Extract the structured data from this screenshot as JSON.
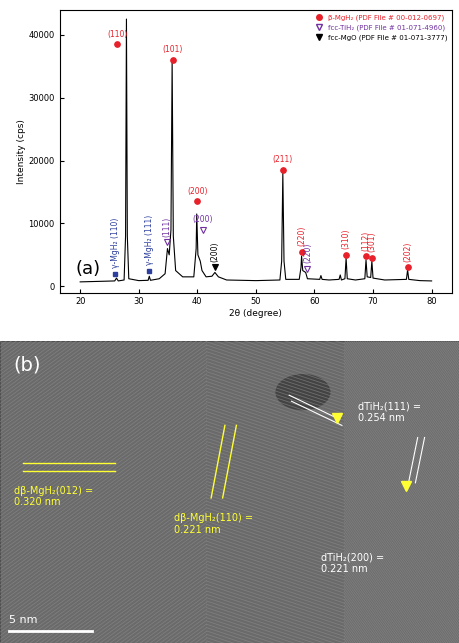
{
  "chart_data": {
    "type": "line",
    "title": "(a)",
    "xlabel": "2θ (degree)",
    "ylabel": "Intensity (cps)",
    "color": "#000000",
    "x": [
      20,
      22,
      24,
      25.9,
      26.2,
      26.5,
      27.5,
      27.75,
      27.9,
      28.05,
      28.3,
      30,
      31.6,
      31.8,
      32.0,
      33.5,
      34.5,
      34.9,
      35.2,
      35.5,
      35.7,
      35.9,
      36.3,
      37.5,
      39.4,
      39.8,
      39.9,
      40.1,
      40.5,
      40.8,
      41.5,
      42.5,
      43.0,
      43.6,
      45,
      50,
      54.1,
      54.4,
      54.6,
      54.8,
      55.1,
      57.4,
      57.7,
      57.8,
      58.0,
      58.5,
      58.8,
      60.9,
      61.1,
      61.3,
      62.5,
      64.2,
      64.4,
      64.6,
      65.2,
      65.4,
      65.6,
      67,
      68.6,
      68.8,
      69.0,
      69.6,
      69.8,
      70.0,
      72,
      75.7,
      75.9,
      76.1,
      78,
      80
    ],
    "values": [
      700,
      750,
      800,
      850,
      1300,
      850,
      1000,
      8000,
      42500,
      8000,
      1200,
      900,
      950,
      1600,
      950,
      1200,
      2000,
      6000,
      5000,
      9000,
      36000,
      8000,
      2500,
      1500,
      1500,
      6000,
      11500,
      5000,
      4000,
      2500,
      1500,
      1600,
      2200,
      1500,
      1000,
      900,
      1000,
      4000,
      18000,
      4000,
      1100,
      1100,
      3000,
      4800,
      2500,
      2200,
      1200,
      1100,
      1700,
      1100,
      1000,
      1100,
      1800,
      1000,
      1200,
      4500,
      1200,
      1000,
      1200,
      4200,
      1500,
      1400,
      4000,
      1300,
      1000,
      1100,
      2600,
      1100,
      900,
      850
    ],
    "xlim": [
      16.5,
      83.5
    ],
    "xticks": [
      20,
      30,
      40,
      50,
      60,
      70,
      80
    ],
    "ylim": [
      -1000,
      44000
    ],
    "yticks": [
      0,
      10000,
      20000,
      30000,
      40000
    ],
    "grid": false,
    "legend": "upper right",
    "series": [
      {
        "name": "β-MgH₂ (PDF File # 00-012-0697)",
        "color": "#e8202a",
        "marker": "circle",
        "peaks": [
          {
            "x": 26.3,
            "y": 38500,
            "label": "(110)"
          },
          {
            "x": 35.8,
            "y": 36000,
            "label": "(101)"
          },
          {
            "x": 40.0,
            "y": 13500,
            "label": "(200)"
          },
          {
            "x": 54.6,
            "y": 18500,
            "label": "(211)"
          },
          {
            "x": 57.8,
            "y": 5500,
            "label": "(220)"
          },
          {
            "x": 65.4,
            "y": 5000,
            "label": "(310)"
          },
          {
            "x": 68.8,
            "y": 4800,
            "label": "(112)"
          },
          {
            "x": 69.8,
            "y": 4500,
            "label": "(301)"
          },
          {
            "x": 75.9,
            "y": 3000,
            "label": "(202)"
          }
        ]
      },
      {
        "name": "fcc-TiH₂ (PDF File # 01-071-4960)",
        "color": "#7030a0",
        "marker": "open_triangle_down",
        "peaks": [
          {
            "x": 34.8,
            "y": 7000,
            "label": "(111)"
          },
          {
            "x": 40.9,
            "y": 9000,
            "label": "(200)"
          },
          {
            "x": 58.8,
            "y": 2800,
            "label": "(220)"
          }
        ]
      },
      {
        "name": "fcc-MgO (PDF File # 01-071-3777)",
        "color": "#000000",
        "marker": "triangle_down",
        "peaks": [
          {
            "x": 43.0,
            "y": 3000,
            "label": "(200)"
          }
        ]
      }
    ],
    "annotations": [
      {
        "x": 26.0,
        "y": 2000,
        "text": "γ-MgH₂ (110)",
        "color": "#2c3e9e",
        "marker": "square"
      },
      {
        "x": 31.8,
        "y": 2500,
        "text": "γ-MgH₂ (111)",
        "color": "#2c3e9e",
        "marker": "square"
      }
    ]
  },
  "micrograph": {
    "panel_label": "(b)",
    "scale_bar": "5 nm",
    "labels": [
      {
        "text": "dβ-MgH₂(012) =\n0.320 nm",
        "color": "#ffff33"
      },
      {
        "text": "dβ-MgH₂(110) =\n0.221 nm",
        "color": "#ffff33"
      },
      {
        "text": "dTiH₂(111) =\n0.254 nm",
        "color": "#ffffff"
      },
      {
        "text": "dTiH₂(200) =\n0.221 nm",
        "color": "#ffffff"
      }
    ]
  }
}
